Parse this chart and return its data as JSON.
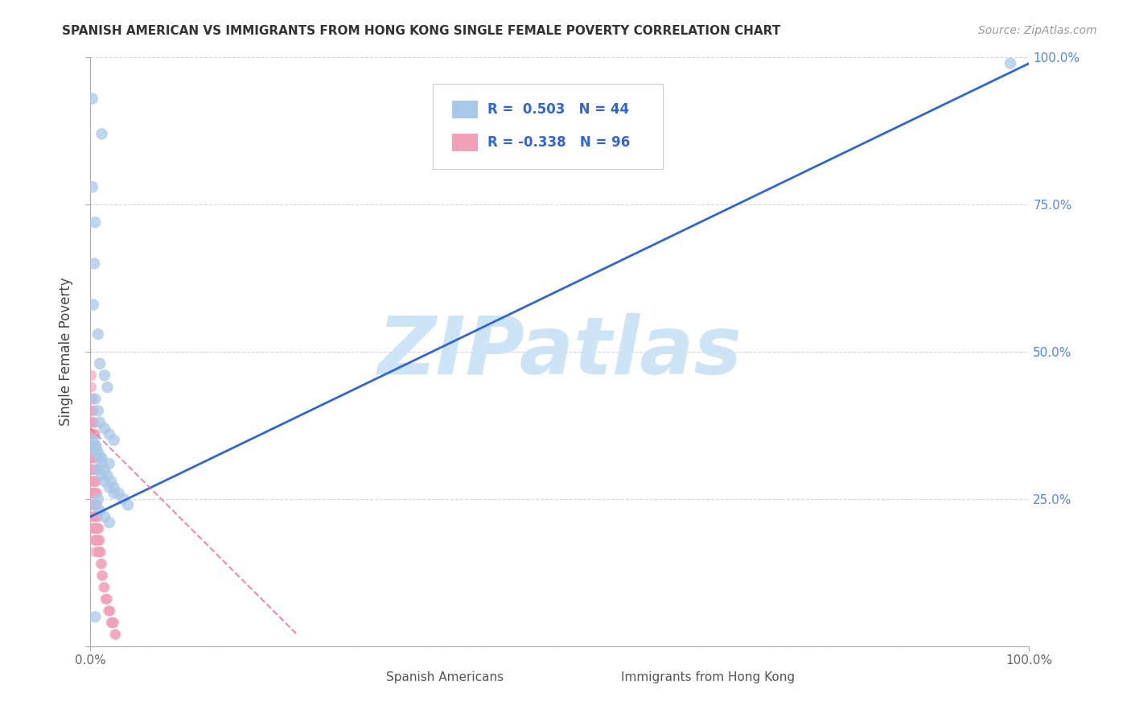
{
  "title": "SPANISH AMERICAN VS IMMIGRANTS FROM HONG KONG SINGLE FEMALE POVERTY CORRELATION CHART",
  "source": "Source: ZipAtlas.com",
  "ylabel": "Single Female Poverty",
  "legend_blue_r": "R =  0.503",
  "legend_blue_n": "N = 44",
  "legend_pink_r": "R = -0.338",
  "legend_pink_n": "N = 96",
  "color_blue_scatter": "#a8c8e8",
  "color_pink_scatter": "#f0a0b8",
  "color_blue_line": "#3366cc",
  "color_pink_line": "#e87090",
  "color_grid": "#cccccc",
  "color_tick_labels": "#5588cc",
  "background_color": "#ffffff",
  "watermark_text": "ZIPatlas",
  "watermark_color": "#cce4f5",
  "blue_scatter_x": [
    0.002,
    0.012,
    0.002,
    0.005,
    0.004,
    0.003,
    0.008,
    0.01,
    0.015,
    0.018,
    0.005,
    0.008,
    0.01,
    0.015,
    0.02,
    0.025,
    0.003,
    0.006,
    0.012,
    0.02,
    0.008,
    0.012,
    0.015,
    0.02,
    0.025,
    0.008,
    0.005,
    0.01,
    0.015,
    0.02,
    0.003,
    0.006,
    0.008,
    0.01,
    0.012,
    0.015,
    0.018,
    0.022,
    0.025,
    0.03,
    0.035,
    0.04,
    0.98,
    0.005
  ],
  "blue_scatter_y": [
    0.93,
    0.87,
    0.78,
    0.72,
    0.65,
    0.58,
    0.53,
    0.48,
    0.46,
    0.44,
    0.42,
    0.4,
    0.38,
    0.37,
    0.36,
    0.35,
    0.34,
    0.33,
    0.32,
    0.31,
    0.3,
    0.29,
    0.28,
    0.27,
    0.26,
    0.25,
    0.24,
    0.23,
    0.22,
    0.21,
    0.35,
    0.34,
    0.33,
    0.32,
    0.31,
    0.3,
    0.29,
    0.28,
    0.27,
    0.26,
    0.25,
    0.24,
    0.99,
    0.05
  ],
  "pink_scatter_x": [
    0.001,
    0.001,
    0.001,
    0.001,
    0.001,
    0.001,
    0.001,
    0.001,
    0.001,
    0.001,
    0.002,
    0.002,
    0.002,
    0.002,
    0.002,
    0.002,
    0.002,
    0.002,
    0.002,
    0.002,
    0.003,
    0.003,
    0.003,
    0.003,
    0.003,
    0.003,
    0.003,
    0.003,
    0.003,
    0.003,
    0.004,
    0.004,
    0.004,
    0.004,
    0.004,
    0.004,
    0.004,
    0.004,
    0.004,
    0.004,
    0.005,
    0.005,
    0.005,
    0.005,
    0.005,
    0.005,
    0.005,
    0.005,
    0.005,
    0.005,
    0.006,
    0.006,
    0.006,
    0.006,
    0.006,
    0.006,
    0.006,
    0.007,
    0.007,
    0.007,
    0.007,
    0.007,
    0.008,
    0.008,
    0.008,
    0.008,
    0.009,
    0.009,
    0.009,
    0.01,
    0.01,
    0.011,
    0.011,
    0.012,
    0.012,
    0.013,
    0.014,
    0.015,
    0.016,
    0.017,
    0.018,
    0.019,
    0.02,
    0.021,
    0.022,
    0.023,
    0.024,
    0.025,
    0.026,
    0.027,
    0.001,
    0.001,
    0.002,
    0.003,
    0.004,
    0.005
  ],
  "pink_scatter_y": [
    0.42,
    0.4,
    0.38,
    0.36,
    0.34,
    0.32,
    0.3,
    0.28,
    0.26,
    0.24,
    0.4,
    0.38,
    0.36,
    0.34,
    0.32,
    0.3,
    0.28,
    0.26,
    0.24,
    0.22,
    0.38,
    0.36,
    0.34,
    0.32,
    0.3,
    0.28,
    0.26,
    0.24,
    0.22,
    0.2,
    0.36,
    0.34,
    0.32,
    0.3,
    0.28,
    0.26,
    0.24,
    0.22,
    0.2,
    0.18,
    0.34,
    0.32,
    0.3,
    0.28,
    0.26,
    0.24,
    0.22,
    0.2,
    0.18,
    0.16,
    0.3,
    0.28,
    0.26,
    0.24,
    0.22,
    0.2,
    0.18,
    0.26,
    0.24,
    0.22,
    0.2,
    0.18,
    0.22,
    0.2,
    0.18,
    0.16,
    0.2,
    0.18,
    0.16,
    0.18,
    0.16,
    0.16,
    0.14,
    0.14,
    0.12,
    0.12,
    0.1,
    0.1,
    0.08,
    0.08,
    0.08,
    0.06,
    0.06,
    0.06,
    0.04,
    0.04,
    0.04,
    0.04,
    0.02,
    0.02,
    0.44,
    0.46,
    0.42,
    0.4,
    0.38,
    0.36
  ]
}
